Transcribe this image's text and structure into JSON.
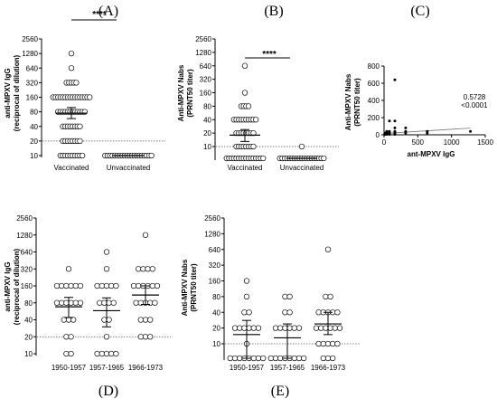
{
  "panel_labels": [
    "(A)",
    "(B)",
    "(C)",
    "(D)",
    "(E)"
  ],
  "chart_data": [
    {
      "id": "A",
      "type": "scatter",
      "ylabel_line1": "anti-MPXV IgG",
      "ylabel_line2": "(reciprocal of dilution)",
      "y_ticks": [
        "2560",
        "1280",
        "640",
        "320",
        "160",
        "80",
        "40",
        "20",
        "10"
      ],
      "y_scale": "log2",
      "threshold": 20,
      "categories": [
        "Vaccinated",
        "Unvaccinated"
      ],
      "significance": "****",
      "groups": [
        {
          "name": "Vaccinated",
          "mean": 75,
          "ci": [
            58,
            98
          ],
          "values": [
            1280,
            640,
            320,
            320,
            320,
            320,
            320,
            160,
            160,
            160,
            160,
            160,
            160,
            160,
            160,
            160,
            160,
            160,
            160,
            160,
            160,
            160,
            160,
            80,
            80,
            80,
            80,
            80,
            80,
            80,
            80,
            80,
            80,
            80,
            80,
            40,
            40,
            40,
            40,
            40,
            40,
            40,
            40,
            20,
            20,
            20,
            20,
            20,
            20,
            20,
            20,
            10,
            10,
            10,
            10,
            10,
            10,
            10,
            10,
            10,
            10
          ]
        },
        {
          "name": "Unvaccinated",
          "mean": 10,
          "ci": [
            10,
            10
          ],
          "values": [
            10,
            10,
            10,
            10,
            10,
            10,
            10,
            10,
            10,
            10,
            10,
            10,
            10,
            10,
            10,
            10,
            10,
            10,
            10,
            10
          ]
        }
      ]
    },
    {
      "id": "B",
      "type": "scatter",
      "ylabel_line1": "Anti-MPXV Nabs",
      "ylabel_line2": "(PRNT50 titer)",
      "y_ticks": [
        "2560",
        "1280",
        "640",
        "320",
        "160",
        "80",
        "40",
        "20",
        "10"
      ],
      "y_scale": "log2",
      "threshold": 10,
      "categories": [
        "Vaccinated",
        "Unvaccinated"
      ],
      "significance": "****",
      "groups": [
        {
          "name": "Vaccinated",
          "mean": 18,
          "ci": [
            13,
            24
          ],
          "values": [
            640,
            160,
            80,
            80,
            80,
            80,
            40,
            40,
            40,
            40,
            40,
            40,
            40,
            40,
            40,
            40,
            20,
            20,
            20,
            20,
            20,
            20,
            20,
            20,
            10,
            10,
            10,
            10,
            10,
            10,
            10,
            10,
            5,
            5,
            5,
            5,
            5,
            5,
            5,
            5,
            5,
            5,
            5,
            5,
            5,
            5,
            5,
            5
          ]
        },
        {
          "name": "Unvaccinated",
          "mean": 5,
          "ci": [
            5,
            5
          ],
          "values": [
            10,
            5,
            5,
            5,
            5,
            5,
            5,
            5,
            5,
            5,
            5,
            5,
            5,
            5,
            5,
            5,
            5,
            5,
            5,
            5
          ]
        }
      ]
    },
    {
      "id": "C",
      "type": "scatter",
      "xlabel": "ant-MPXV IgG",
      "ylabel_line1": "Anti-MPXV Nabs",
      "ylabel_line2": "(PRNT50 titer)",
      "x_ticks": [
        "0",
        "500",
        "1000",
        "1500"
      ],
      "y_ticks": [
        "800",
        "600",
        "400",
        "200",
        "0"
      ],
      "xlim": [
        0,
        1500
      ],
      "ylim": [
        0,
        800
      ],
      "stats_line1": "0.5728",
      "stats_line2": "<0.0001",
      "fit": {
        "x": [
          0,
          1280
        ],
        "y": [
          15,
          78
        ]
      },
      "points": [
        [
          10,
          5
        ],
        [
          20,
          10
        ],
        [
          20,
          5
        ],
        [
          40,
          20
        ],
        [
          40,
          10
        ],
        [
          40,
          5
        ],
        [
          80,
          40
        ],
        [
          80,
          20
        ],
        [
          80,
          10
        ],
        [
          80,
          5
        ],
        [
          160,
          640
        ],
        [
          160,
          80
        ],
        [
          160,
          40
        ],
        [
          160,
          20
        ],
        [
          160,
          10
        ],
        [
          160,
          5
        ],
        [
          320,
          80
        ],
        [
          320,
          40
        ],
        [
          320,
          20
        ],
        [
          640,
          40
        ],
        [
          640,
          20
        ],
        [
          1280,
          40
        ],
        [
          10,
          10
        ],
        [
          20,
          20
        ],
        [
          40,
          40
        ],
        [
          80,
          160
        ],
        [
          160,
          160
        ]
      ]
    },
    {
      "id": "D",
      "type": "scatter",
      "ylabel_line1": "anti-MPXV IgG",
      "ylabel_line2": "(reciprocal of dilution)",
      "y_ticks": [
        "2560",
        "1280",
        "640",
        "320",
        "160",
        "80",
        "40",
        "20",
        "10"
      ],
      "y_scale": "log2",
      "threshold": 20,
      "categories": [
        "1950-1957",
        "1957-1965",
        "1966-1973"
      ],
      "groups": [
        {
          "name": "1950-1957",
          "mean": 68,
          "ci": [
            44,
            100
          ],
          "values": [
            320,
            160,
            160,
            160,
            160,
            160,
            160,
            80,
            80,
            80,
            80,
            80,
            80,
            40,
            40,
            40,
            20,
            20,
            10,
            10
          ]
        },
        {
          "name": "1957-1965",
          "mean": 58,
          "ci": [
            30,
            98
          ],
          "values": [
            640,
            320,
            160,
            160,
            160,
            160,
            160,
            80,
            80,
            80,
            80,
            40,
            40,
            20,
            10,
            10,
            10,
            10,
            10
          ]
        },
        {
          "name": "1966-1973",
          "mean": 110,
          "ci": [
            75,
            160
          ],
          "values": [
            1280,
            320,
            320,
            320,
            320,
            160,
            160,
            160,
            160,
            160,
            160,
            80,
            80,
            80,
            80,
            80,
            40,
            40,
            40,
            20,
            20,
            20
          ]
        }
      ]
    },
    {
      "id": "E",
      "type": "scatter",
      "ylabel_line1": "Anti-MPXV Nabs",
      "ylabel_line2": "(PRNT50 titer)",
      "y_ticks": [
        "2560",
        "1280",
        "640",
        "320",
        "160",
        "80",
        "40",
        "20",
        "10"
      ],
      "y_scale": "log2",
      "threshold": 10,
      "categories": [
        "1950-1957",
        "1957-1965",
        "1966-1973"
      ],
      "groups": [
        {
          "name": "1950-1957",
          "mean": 15,
          "ci": [
            9,
            28
          ],
          "values": [
            160,
            80,
            40,
            40,
            20,
            20,
            20,
            20,
            20,
            20,
            10,
            5,
            5,
            5,
            5,
            5,
            5,
            5,
            5
          ]
        },
        {
          "name": "1957-1965",
          "mean": 13,
          "ci": [
            8,
            24
          ],
          "values": [
            80,
            80,
            40,
            40,
            20,
            20,
            20,
            20,
            20,
            20,
            5,
            5,
            5,
            5,
            5,
            5,
            5,
            5
          ]
        },
        {
          "name": "1966-1973",
          "mean": 24,
          "ci": [
            15,
            40
          ],
          "values": [
            640,
            80,
            80,
            40,
            40,
            40,
            40,
            40,
            20,
            20,
            20,
            20,
            20,
            20,
            10,
            10,
            10,
            10,
            10,
            5,
            5,
            5
          ]
        }
      ]
    }
  ]
}
